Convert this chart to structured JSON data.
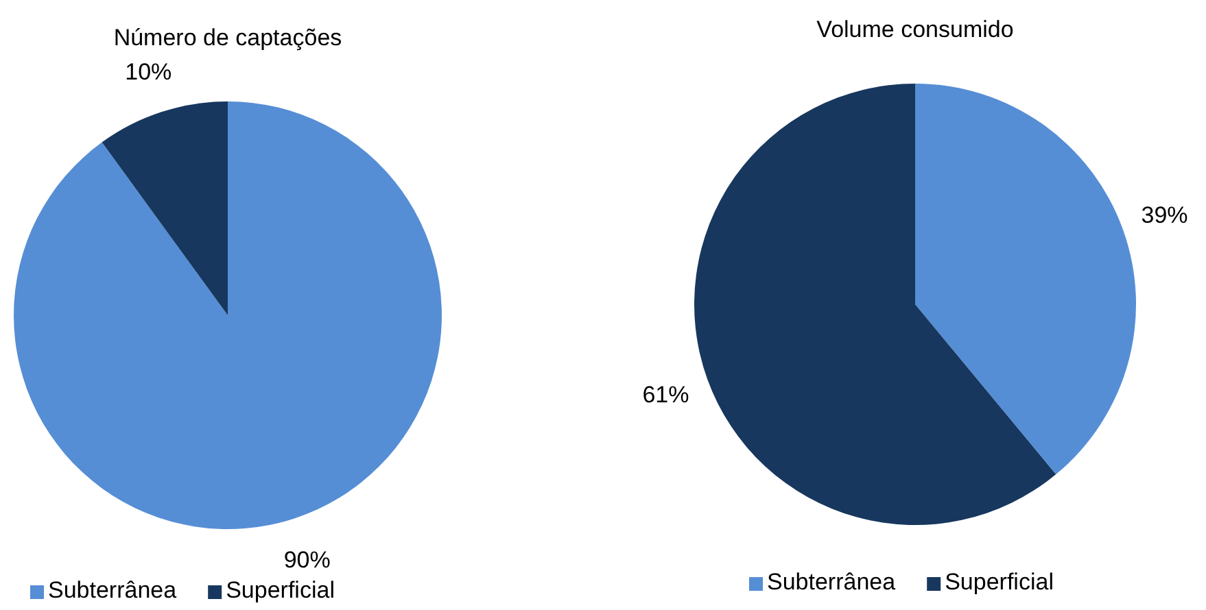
{
  "chart_data": [
    {
      "type": "pie",
      "title": "Número de captações",
      "categories": [
        "Subterrânea",
        "Superficial"
      ],
      "values": [
        90,
        10
      ],
      "colors": [
        "#558ed5",
        "#17375e"
      ],
      "value_labels": [
        "90%",
        "10%"
      ],
      "legend": "bottom"
    },
    {
      "type": "pie",
      "title": "Volume consumido",
      "categories": [
        "Subterrânea",
        "Superficial"
      ],
      "values": [
        39,
        61
      ],
      "colors": [
        "#558ed5",
        "#17375e"
      ],
      "value_labels": [
        "39%",
        "61%"
      ],
      "legend": "bottom"
    }
  ]
}
